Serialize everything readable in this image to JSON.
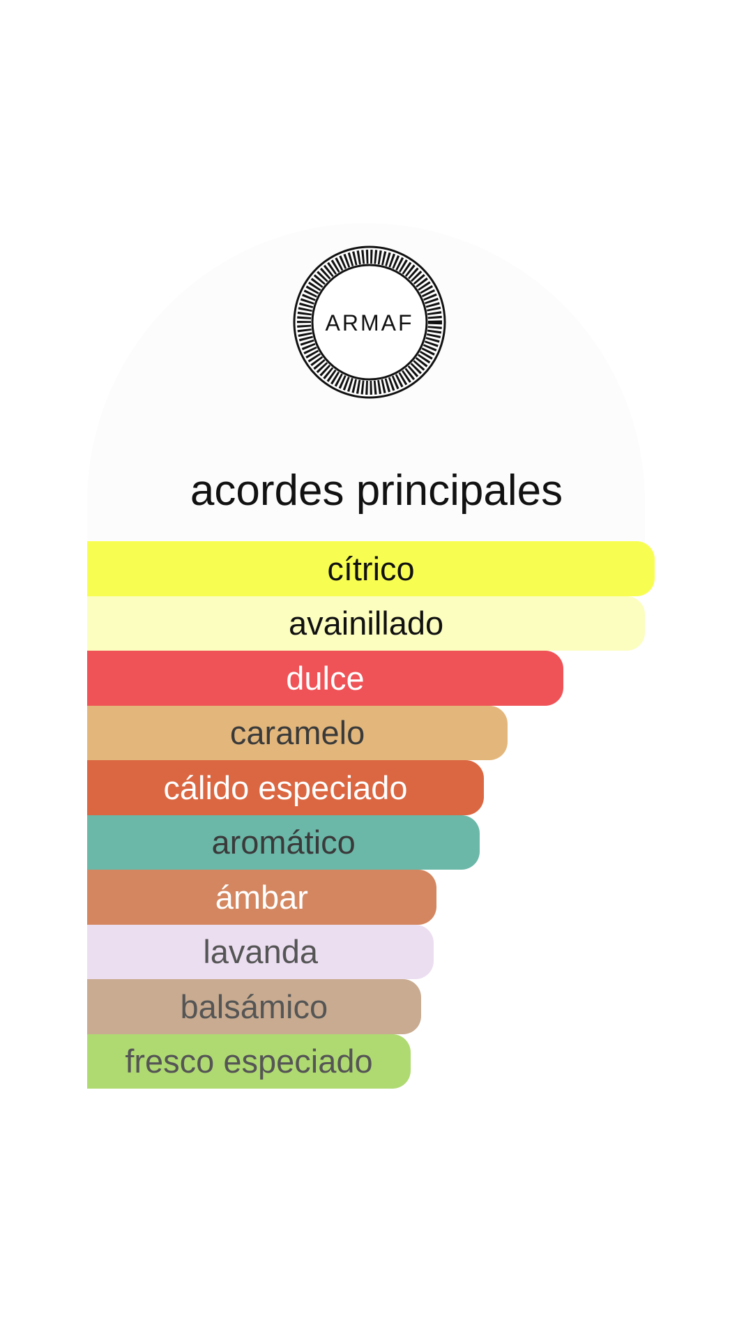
{
  "brand": {
    "logo_text": "ARMAF"
  },
  "chart_data": {
    "type": "bar",
    "orientation": "horizontal",
    "title": "acordes principales",
    "categories": [
      "cítrico",
      "avainillado",
      "dulce",
      "caramelo",
      "cálido especiado",
      "aromático",
      "ámbar",
      "lavanda",
      "balsámico",
      "fresco especiado"
    ],
    "values": [
      100,
      98.3,
      83.9,
      74.1,
      69.9,
      69.2,
      61.5,
      61.1,
      58.8,
      57.0
    ],
    "colors": [
      "#f8fe51",
      "#fcfebf",
      "#ef5257",
      "#e3b77c",
      "#da6742",
      "#6bb8a8",
      "#d3865f",
      "#ecdef1",
      "#c8ab90",
      "#afda72"
    ],
    "text_colors": [
      "#111111",
      "#111111",
      "#ffffff",
      "#3a3a3a",
      "#ffffff",
      "#3a3a3a",
      "#ffffff",
      "#555555",
      "#555555",
      "#555555"
    ]
  }
}
